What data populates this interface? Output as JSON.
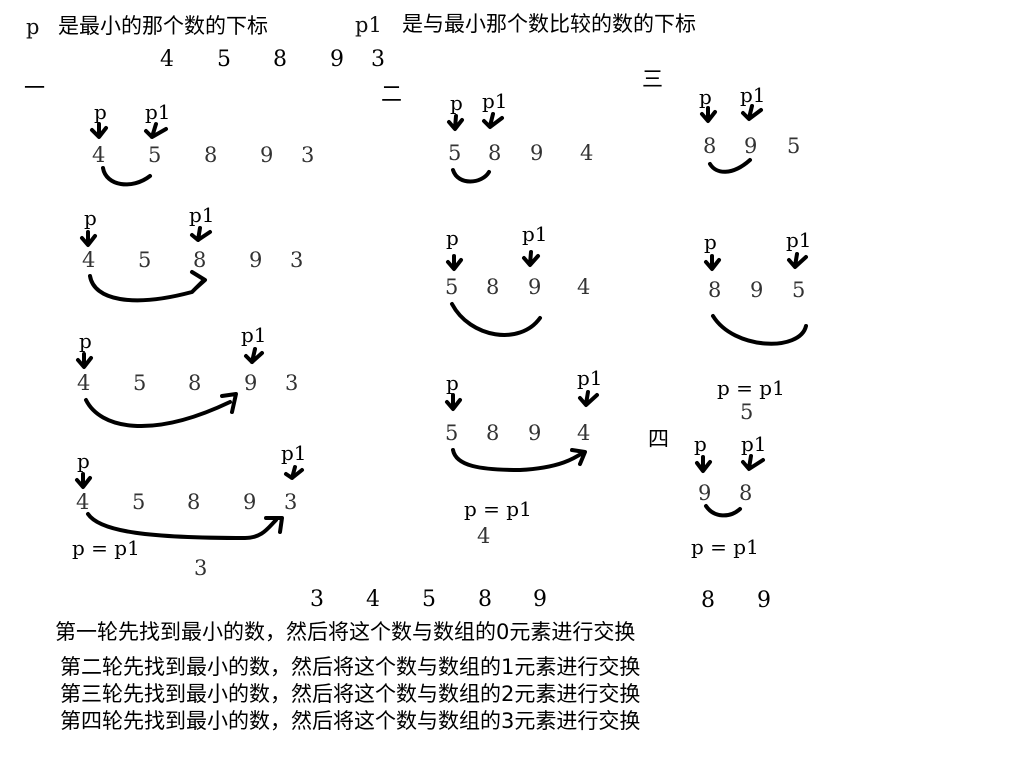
{
  "header": {
    "p_symbol": "p",
    "p_desc": "是最小的那个数的下标",
    "p1_symbol": "p1",
    "p1_desc": "是与最小那个数比较的数的下标"
  },
  "initial_array": [
    "4",
    "5",
    "8",
    "9",
    "3"
  ],
  "rounds": {
    "r1": {
      "label": "一",
      "steps": [
        {
          "p": "p",
          "p1": "p1",
          "values": [
            "4",
            "5",
            "8",
            "9",
            "3"
          ]
        },
        {
          "p": "p",
          "p1": "p1",
          "values": [
            "4",
            "5",
            "8",
            "9",
            "3"
          ]
        },
        {
          "p": "p",
          "p1": "p1",
          "values": [
            "4",
            "5",
            "8",
            "9",
            "3"
          ]
        },
        {
          "p": "p",
          "p1": "p1",
          "values": [
            "4",
            "5",
            "8",
            "9",
            "3"
          ]
        }
      ],
      "result_eq": "p  =  p1",
      "result_val": "3"
    },
    "r2": {
      "label": "二",
      "steps": [
        {
          "p": "p",
          "p1": "p1",
          "values": [
            "5",
            "8",
            "9",
            "4"
          ]
        },
        {
          "p": "p",
          "p1": "p1",
          "values": [
            "5",
            "8",
            "9",
            "4"
          ]
        },
        {
          "p": "p",
          "p1": "p1",
          "values": [
            "5",
            "8",
            "9",
            "4"
          ]
        }
      ],
      "result_eq": "p  =  p1",
      "result_val": "4"
    },
    "r3": {
      "label": "三",
      "steps": [
        {
          "p": "p",
          "p1": "p1",
          "values": [
            "8",
            "9",
            "5"
          ]
        },
        {
          "p": "p",
          "p1": "p1",
          "values": [
            "8",
            "9",
            "5"
          ]
        }
      ],
      "result_eq": "p  =  p1",
      "result_val": "5"
    },
    "r4": {
      "label": "四",
      "steps": [
        {
          "p": "p",
          "p1": "p1",
          "values": [
            "9",
            "8"
          ]
        }
      ],
      "result_eq": "p  =  p1"
    }
  },
  "sorted_array": [
    "3",
    "4",
    "5",
    "8",
    "9"
  ],
  "sorted_tail": [
    "8",
    "9"
  ],
  "explanations": [
    "第一轮先找到最小的数，然后将这个数与数组的0元素进行交换",
    "第二轮先找到最小的数，然后将这个数与数组的1元素进行交换",
    "第三轮先找到最小的数，然后将这个数与数组的2元素进行交换",
    "第四轮先找到最小的数，然后将这个数与数组的3元素进行交换"
  ]
}
